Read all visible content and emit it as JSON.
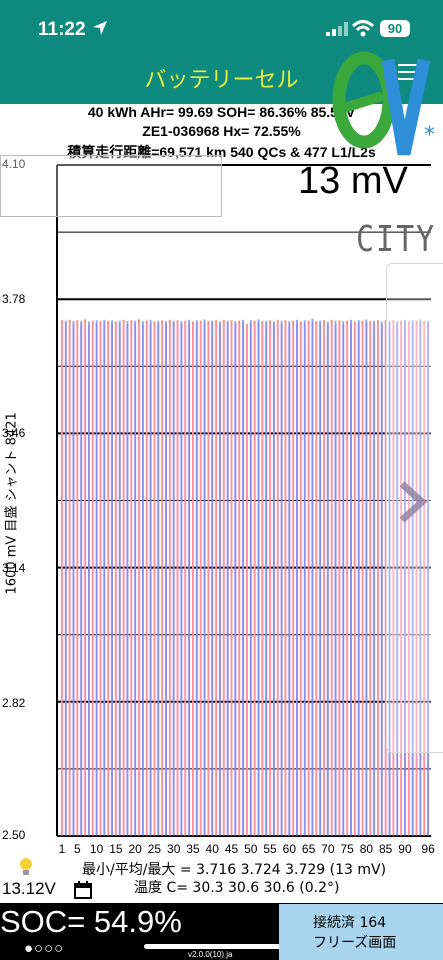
{
  "status_bar": {
    "time": "11:22",
    "battery_level": "90",
    "icons": [
      "location-arrow-icon",
      "cellular-signal-icon",
      "wifi-icon",
      "battery-icon"
    ]
  },
  "header": {
    "title": "バッテリーセル",
    "menu_icon": "hamburger-menu-icon",
    "colors": {
      "bar": "#0f8a7e",
      "title": "#e8ee3a"
    }
  },
  "battery_info": {
    "line1": "40 kWh  AHr= 99.69  SOH= 86.36%  85.56V",
    "line2": "ZE1-036968  Hx= 72.55%",
    "line3": "積算走行距離=69,571 km 540 QCs & 477 L1/L2s",
    "cell_delta": "13 mV",
    "model": "CITY"
  },
  "chart_data": {
    "type": "bar",
    "ylabel": "1600 mV 目盛 シャント 8421",
    "ylim": [
      2.5,
      4.1
    ],
    "yticks": [
      2.5,
      2.82,
      3.14,
      3.46,
      3.78,
      4.1
    ],
    "ytick_labels": [
      "2.50",
      "2.82",
      "3.14",
      "3.46",
      "3.78",
      "4.10"
    ],
    "x_tick_labels": [
      "1",
      "5",
      "10",
      "15",
      "20",
      "25",
      "30",
      "35",
      "40",
      "45",
      "50",
      "55",
      "60",
      "65",
      "70",
      "75",
      "80",
      "85",
      "90",
      "96"
    ],
    "cell_count": 96,
    "min": 3.716,
    "max": 3.729,
    "grid": true,
    "colors": {
      "odd": "#ff8fa0",
      "even": "#8a8cf0",
      "top_odd": "#f09078",
      "top_even": "#a0a0f0"
    },
    "values": [
      3.725,
      3.724,
      3.726,
      3.723,
      3.725,
      3.724,
      3.727,
      3.722,
      3.724,
      3.725,
      3.723,
      3.726,
      3.724,
      3.725,
      3.722,
      3.724,
      3.726,
      3.723,
      3.725,
      3.724,
      3.727,
      3.723,
      3.724,
      3.726,
      3.722,
      3.724,
      3.725,
      3.723,
      3.726,
      3.724,
      3.725,
      3.723,
      3.724,
      3.726,
      3.722,
      3.725,
      3.724,
      3.727,
      3.723,
      3.724,
      3.725,
      3.722,
      3.726,
      3.724,
      3.725,
      3.723,
      3.724,
      3.726,
      3.716,
      3.725,
      3.724,
      3.727,
      3.723,
      3.724,
      3.725,
      3.722,
      3.726,
      3.724,
      3.725,
      3.723,
      3.724,
      3.726,
      3.722,
      3.725,
      3.724,
      3.729,
      3.723,
      3.724,
      3.725,
      3.722,
      3.726,
      3.724,
      3.725,
      3.723,
      3.724,
      3.726,
      3.722,
      3.725,
      3.724,
      3.727,
      3.723,
      3.724,
      3.725,
      3.722,
      3.726,
      3.724,
      3.725,
      3.723,
      3.724,
      3.726,
      3.722,
      3.725,
      3.724,
      3.727,
      3.723,
      3.724
    ]
  },
  "stats": {
    "line1": "最小/平均/最大 = 3.716 3.724 3.729  (13 mV)",
    "line2": "温度 C= 30.3  30.6  30.6  (0.2°)"
  },
  "footer": {
    "aux_voltage": "13.12V",
    "soc": "SOC= 54.9%",
    "page_dots": "●○○○",
    "version": "v2.0.0(10) ja",
    "connection": "接続済 164",
    "freeze": "フリーズ画面",
    "colors": {
      "bar": "#000000",
      "panel": "#a8d4ee"
    }
  }
}
